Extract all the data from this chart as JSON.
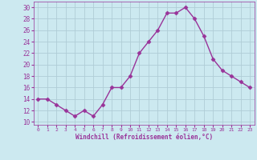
{
  "x": [
    0,
    1,
    2,
    3,
    4,
    5,
    6,
    7,
    8,
    9,
    10,
    11,
    12,
    13,
    14,
    15,
    16,
    17,
    18,
    19,
    20,
    21,
    22,
    23
  ],
  "y": [
    14,
    14,
    13,
    12,
    11,
    12,
    11,
    13,
    16,
    16,
    18,
    22,
    24,
    26,
    29,
    29,
    30,
    28,
    25,
    21,
    19,
    18,
    17,
    16
  ],
  "line_color": "#993399",
  "marker": "D",
  "marker_size": 2.5,
  "bg_color": "#cce9f0",
  "grid_color": "#b0cdd6",
  "xlabel": "Windchill (Refroidissement éolien,°C)",
  "xlabel_color": "#993399",
  "tick_color": "#993399",
  "ylim": [
    9.5,
    31
  ],
  "yticks": [
    10,
    12,
    14,
    16,
    18,
    20,
    22,
    24,
    26,
    28,
    30
  ],
  "xlim": [
    -0.5,
    23.5
  ],
  "xticks": [
    0,
    1,
    2,
    3,
    4,
    5,
    6,
    7,
    8,
    9,
    10,
    11,
    12,
    13,
    14,
    15,
    16,
    17,
    18,
    19,
    20,
    21,
    22,
    23
  ]
}
